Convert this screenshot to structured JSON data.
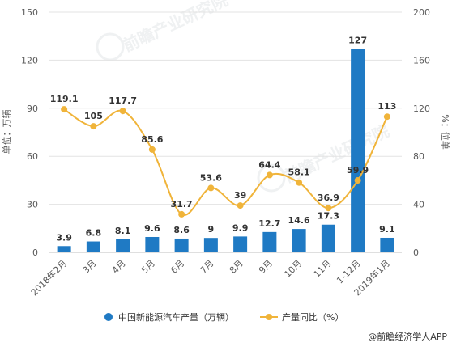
{
  "chart_data": {
    "type": "bar",
    "categories": [
      "2018年2月",
      "3月",
      "4月",
      "5月",
      "6月",
      "7月",
      "8月",
      "9月",
      "10月",
      "11月",
      "1-12月",
      "2019年1月"
    ],
    "series": [
      {
        "name": "中国新能源汽车产量（万辆）",
        "type": "bar",
        "axis": "left",
        "values": [
          3.9,
          6.8,
          8.1,
          9.6,
          8.6,
          9,
          9.9,
          12.7,
          14.6,
          17.3,
          127,
          9.1
        ]
      },
      {
        "name": "产量同比（%）",
        "type": "line",
        "axis": "right",
        "values": [
          119.1,
          105,
          117.7,
          85.6,
          31.7,
          53.6,
          39,
          64.4,
          58.1,
          36.9,
          59.9,
          113
        ]
      }
    ],
    "ylabel": "单位：万辆",
    "y2label": "%：位单",
    "ylim": [
      0,
      150
    ],
    "y2lim": [
      0,
      200
    ],
    "yticks": [
      0,
      30,
      60,
      90,
      120,
      150
    ],
    "y2ticks": [
      0,
      40,
      80,
      120,
      160,
      200
    ],
    "grid": true,
    "legend_position": "bottom",
    "colors": {
      "bar": "#1f7ac4",
      "line": "#f0b43a",
      "grid": "#e3e3e3",
      "text": "#595959"
    }
  },
  "source": "@前瞻经济学人APP",
  "watermark": "前瞻产业研究院"
}
